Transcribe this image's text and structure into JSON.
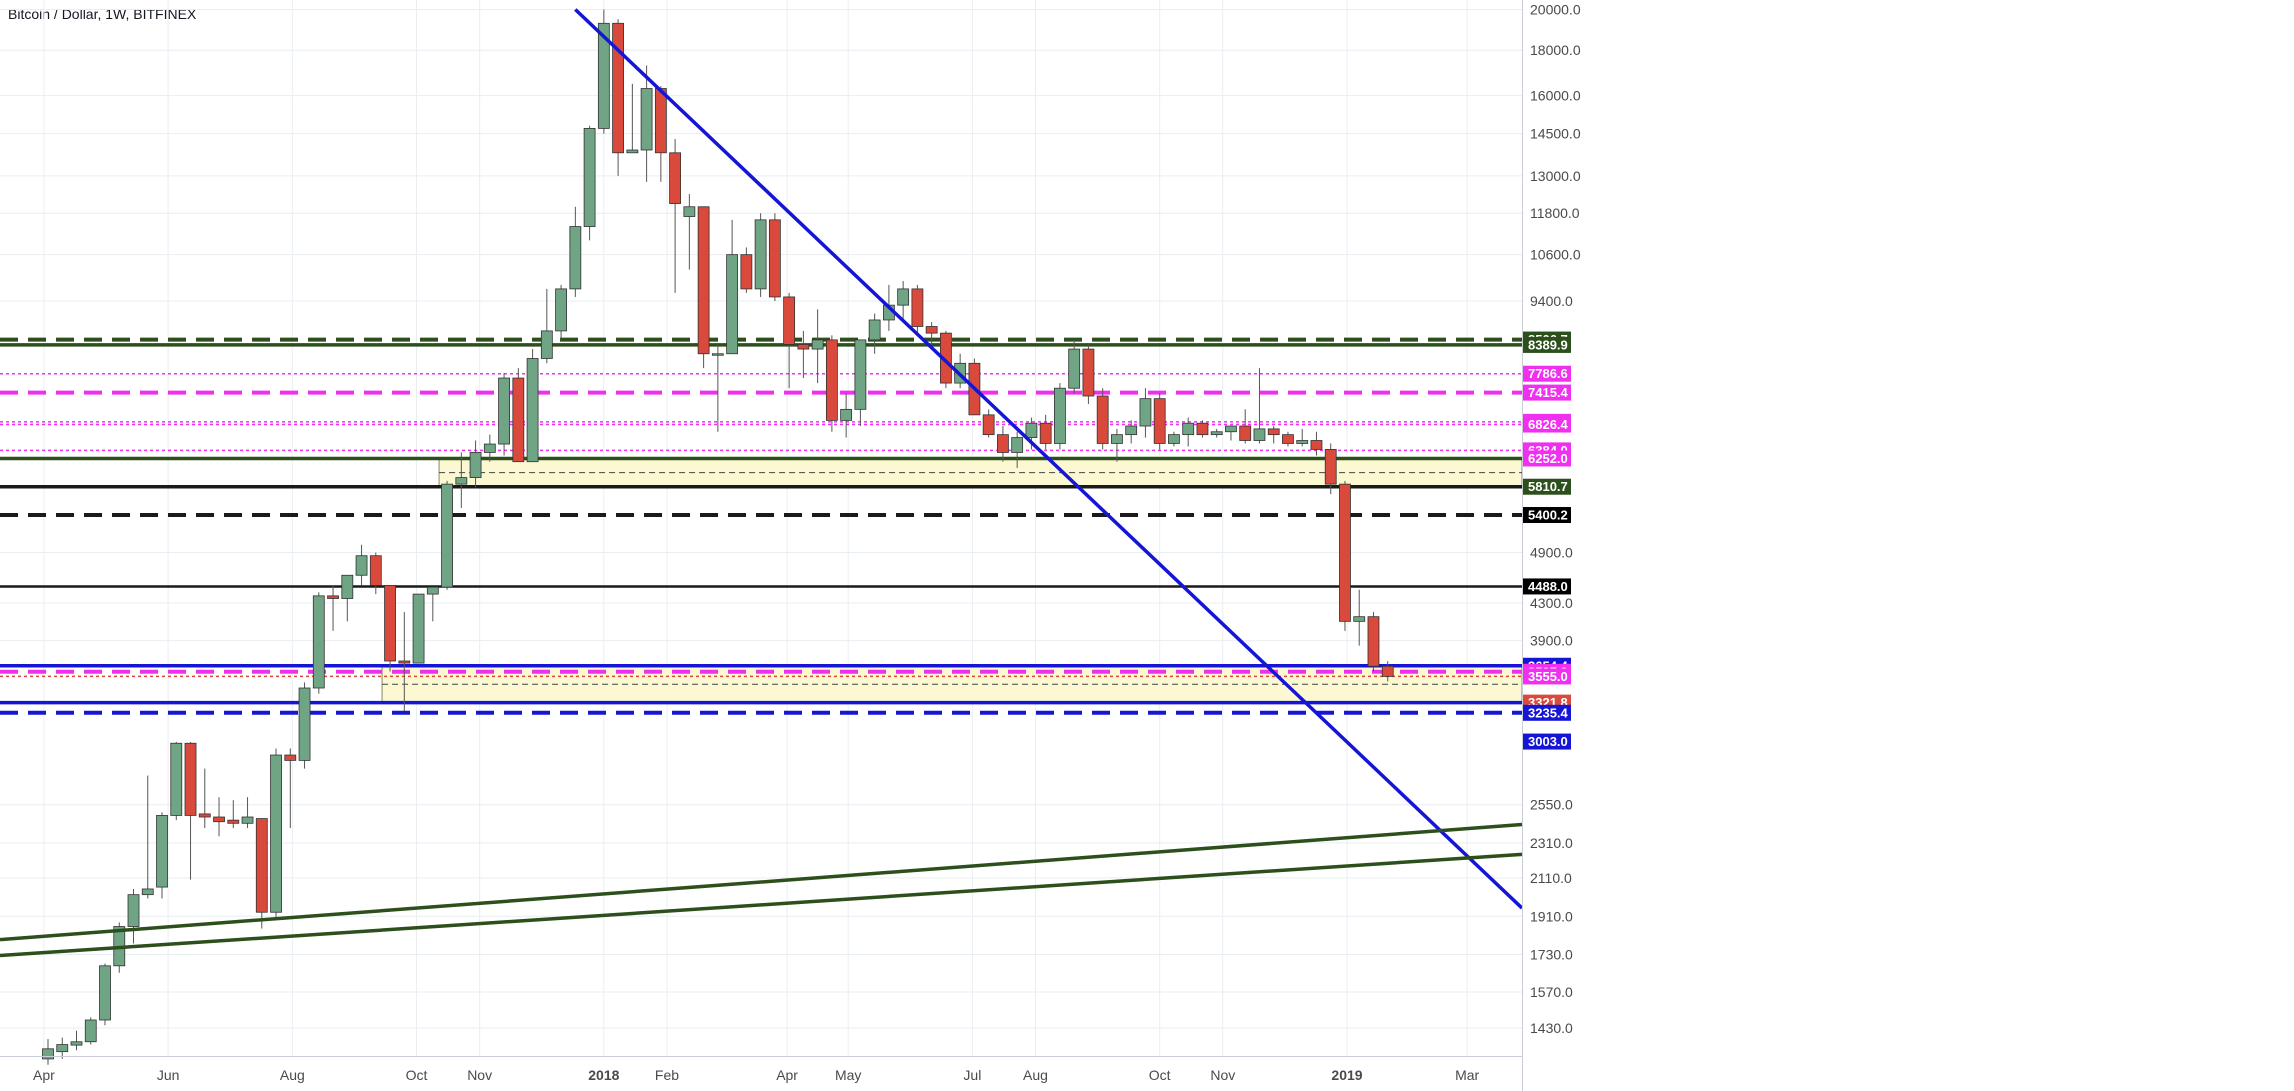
{
  "header": {
    "title": "Bitcoin / Dollar, 1W, BITFINEX"
  },
  "colors": {
    "up": "#6fa485",
    "down": "#d94a3c",
    "trend_blue": "#1515d6",
    "support_green": "#2d4f1c",
    "magenta": "#f030f0",
    "zone_fill": "#fcf8d2",
    "grid": "#e9eef3"
  },
  "chart_data": {
    "type": "candlestick",
    "symbol": "Bitcoin / Dollar",
    "interval": "1W",
    "exchange": "BITFINEX",
    "y_scale": "log",
    "ylim": [
      1330,
      20500
    ],
    "x_start": "2017-04-03",
    "x_end": "2019-03-25",
    "y_ticks": [
      1430.0,
      1570.0,
      1730.0,
      1910.0,
      2110.0,
      2310.0,
      2550.0,
      3900.0,
      4300.0,
      4900.0,
      9400.0,
      10600.0,
      11800.0,
      13000.0,
      14500.0,
      16000.0,
      18000.0,
      20000.0
    ],
    "x_ticks": [
      {
        "label": "Apr",
        "date": "2017-04-01"
      },
      {
        "label": "Jun",
        "date": "2017-06-01"
      },
      {
        "label": "Aug",
        "date": "2017-08-01"
      },
      {
        "label": "Oct",
        "date": "2017-10-01"
      },
      {
        "label": "Nov",
        "date": "2017-11-01"
      },
      {
        "label": "2018",
        "date": "2018-01-01"
      },
      {
        "label": "Feb",
        "date": "2018-02-01"
      },
      {
        "label": "Apr",
        "date": "2018-04-01"
      },
      {
        "label": "May",
        "date": "2018-05-01"
      },
      {
        "label": "Jul",
        "date": "2018-07-01"
      },
      {
        "label": "Aug",
        "date": "2018-08-01"
      },
      {
        "label": "Oct",
        "date": "2018-10-01"
      },
      {
        "label": "Nov",
        "date": "2018-11-01"
      },
      {
        "label": "2019",
        "date": "2019-01-01"
      },
      {
        "label": "Mar",
        "date": "2019-03-01"
      }
    ],
    "candles": [
      {
        "date": "2017-04-03",
        "o": 1320,
        "h": 1390,
        "l": 1300,
        "c": 1355
      },
      {
        "date": "2017-04-10",
        "o": 1345,
        "h": 1395,
        "l": 1320,
        "c": 1370
      },
      {
        "date": "2017-04-17",
        "o": 1368,
        "h": 1420,
        "l": 1350,
        "c": 1380
      },
      {
        "date": "2017-04-24",
        "o": 1380,
        "h": 1470,
        "l": 1370,
        "c": 1460
      },
      {
        "date": "2017-05-01",
        "o": 1460,
        "h": 1690,
        "l": 1440,
        "c": 1680
      },
      {
        "date": "2017-05-08",
        "o": 1680,
        "h": 1880,
        "l": 1650,
        "c": 1860
      },
      {
        "date": "2017-05-15",
        "o": 1860,
        "h": 2050,
        "l": 1780,
        "c": 2020
      },
      {
        "date": "2017-05-22",
        "o": 2020,
        "h": 2750,
        "l": 2000,
        "c": 2050
      },
      {
        "date": "2017-05-29",
        "o": 2060,
        "h": 2500,
        "l": 2000,
        "c": 2480
      },
      {
        "date": "2017-06-05",
        "o": 2480,
        "h": 3000,
        "l": 2450,
        "c": 2990
      },
      {
        "date": "2017-06-12",
        "o": 2990,
        "h": 3000,
        "l": 2100,
        "c": 2480
      },
      {
        "date": "2017-06-19",
        "o": 2490,
        "h": 2800,
        "l": 2400,
        "c": 2470
      },
      {
        "date": "2017-06-26",
        "o": 2470,
        "h": 2600,
        "l": 2350,
        "c": 2440
      },
      {
        "date": "2017-07-03",
        "o": 2450,
        "h": 2580,
        "l": 2400,
        "c": 2430
      },
      {
        "date": "2017-07-10",
        "o": 2430,
        "h": 2600,
        "l": 2400,
        "c": 2470
      },
      {
        "date": "2017-07-17",
        "o": 2460,
        "h": 2460,
        "l": 1850,
        "c": 1930
      },
      {
        "date": "2017-07-24",
        "o": 1930,
        "h": 2950,
        "l": 1900,
        "c": 2900
      },
      {
        "date": "2017-07-31",
        "o": 2900,
        "h": 2950,
        "l": 2400,
        "c": 2860
      },
      {
        "date": "2017-08-07",
        "o": 2860,
        "h": 3500,
        "l": 2800,
        "c": 3450
      },
      {
        "date": "2017-08-14",
        "o": 3450,
        "h": 4420,
        "l": 3400,
        "c": 4380
      },
      {
        "date": "2017-08-21",
        "o": 4380,
        "h": 4500,
        "l": 4000,
        "c": 4350
      },
      {
        "date": "2017-08-28",
        "o": 4350,
        "h": 4600,
        "l": 4100,
        "c": 4620
      },
      {
        "date": "2017-09-04",
        "o": 4620,
        "h": 5000,
        "l": 4500,
        "c": 4860
      },
      {
        "date": "2017-09-11",
        "o": 4860,
        "h": 4900,
        "l": 4400,
        "c": 4500
      },
      {
        "date": "2017-09-18",
        "o": 4500,
        "h": 4500,
        "l": 3600,
        "c": 3700
      },
      {
        "date": "2017-09-25",
        "o": 3700,
        "h": 4200,
        "l": 3250,
        "c": 3680
      },
      {
        "date": "2017-10-02",
        "o": 3680,
        "h": 4350,
        "l": 3680,
        "c": 4400
      },
      {
        "date": "2017-10-09",
        "o": 4400,
        "h": 4420,
        "l": 4100,
        "c": 4480
      },
      {
        "date": "2017-10-16",
        "o": 4480,
        "h": 5900,
        "l": 4450,
        "c": 5850
      },
      {
        "date": "2017-10-23",
        "o": 5850,
        "h": 6350,
        "l": 5500,
        "c": 5950
      },
      {
        "date": "2017-10-30",
        "o": 5950,
        "h": 6550,
        "l": 5800,
        "c": 6350
      },
      {
        "date": "2017-11-06",
        "o": 6350,
        "h": 6650,
        "l": 6200,
        "c": 6490
      },
      {
        "date": "2017-11-13",
        "o": 6490,
        "h": 7800,
        "l": 6300,
        "c": 7700
      },
      {
        "date": "2017-11-20",
        "o": 7700,
        "h": 7900,
        "l": 6200,
        "c": 6200
      },
      {
        "date": "2017-11-27",
        "o": 6200,
        "h": 8300,
        "l": 6200,
        "c": 8100
      },
      {
        "date": "2017-12-04",
        "o": 8100,
        "h": 9700,
        "l": 8000,
        "c": 8700
      },
      {
        "date": "2017-12-11",
        "o": 8700,
        "h": 9800,
        "l": 8500,
        "c": 9700
      },
      {
        "date": "2017-12-18",
        "o": 9700,
        "h": 12000,
        "l": 9500,
        "c": 11400
      },
      {
        "date": "2017-12-25",
        "o": 11400,
        "h": 14800,
        "l": 11000,
        "c": 14700
      },
      {
        "date": "2018-01-01",
        "o": 14700,
        "h": 20000,
        "l": 14500,
        "c": 19300
      },
      {
        "date": "2018-01-08",
        "o": 19300,
        "h": 19500,
        "l": 13000,
        "c": 13800
      },
      {
        "date": "2018-01-15",
        "o": 13800,
        "h": 16500,
        "l": 13800,
        "c": 13900
      },
      {
        "date": "2018-01-22",
        "o": 13900,
        "h": 17300,
        "l": 12800,
        "c": 16300
      },
      {
        "date": "2018-01-29",
        "o": 16300,
        "h": 16400,
        "l": 12800,
        "c": 13800
      },
      {
        "date": "2018-02-05",
        "o": 13800,
        "h": 14300,
        "l": 9600,
        "c": 12100
      },
      {
        "date": "2018-02-12",
        "o": 11700,
        "h": 12400,
        "l": 10200,
        "c": 12000
      },
      {
        "date": "2018-02-19",
        "o": 12000,
        "h": 12000,
        "l": 7900,
        "c": 8200
      },
      {
        "date": "2018-02-26",
        "o": 8200,
        "h": 8400,
        "l": 6700,
        "c": 8200
      },
      {
        "date": "2018-03-05",
        "o": 8200,
        "h": 11600,
        "l": 8200,
        "c": 10600
      },
      {
        "date": "2018-03-12",
        "o": 10600,
        "h": 10800,
        "l": 9600,
        "c": 9700
      },
      {
        "date": "2018-03-19",
        "o": 9700,
        "h": 11800,
        "l": 9500,
        "c": 11600
      },
      {
        "date": "2018-03-26",
        "o": 11600,
        "h": 11800,
        "l": 9400,
        "c": 9500
      },
      {
        "date": "2018-04-02",
        "o": 9500,
        "h": 9600,
        "l": 7500,
        "c": 8400
      },
      {
        "date": "2018-04-09",
        "o": 8400,
        "h": 8700,
        "l": 7700,
        "c": 8300
      },
      {
        "date": "2018-04-16",
        "o": 8300,
        "h": 9200,
        "l": 7600,
        "c": 8500
      },
      {
        "date": "2018-04-23",
        "o": 8500,
        "h": 8600,
        "l": 6700,
        "c": 6900
      },
      {
        "date": "2018-04-30",
        "o": 6900,
        "h": 7400,
        "l": 6600,
        "c": 7100
      },
      {
        "date": "2018-05-07",
        "o": 7100,
        "h": 8500,
        "l": 6800,
        "c": 8500
      },
      {
        "date": "2018-05-14",
        "o": 8500,
        "h": 9100,
        "l": 8200,
        "c": 8950
      },
      {
        "date": "2018-05-21",
        "o": 8950,
        "h": 9800,
        "l": 8700,
        "c": 9300
      },
      {
        "date": "2018-05-28",
        "o": 9300,
        "h": 9900,
        "l": 8900,
        "c": 9700
      },
      {
        "date": "2018-06-04",
        "o": 9700,
        "h": 9800,
        "l": 8600,
        "c": 8800
      },
      {
        "date": "2018-06-11",
        "o": 8800,
        "h": 8900,
        "l": 8300,
        "c": 8650
      },
      {
        "date": "2018-06-18",
        "o": 8650,
        "h": 8700,
        "l": 7500,
        "c": 7600
      },
      {
        "date": "2018-06-25",
        "o": 7600,
        "h": 8200,
        "l": 7500,
        "c": 8000
      },
      {
        "date": "2018-07-02",
        "o": 8000,
        "h": 8100,
        "l": 7000,
        "c": 7000
      },
      {
        "date": "2018-07-09",
        "o": 7000,
        "h": 7100,
        "l": 6600,
        "c": 6650
      },
      {
        "date": "2018-07-16",
        "o": 6650,
        "h": 6800,
        "l": 6200,
        "c": 6350
      },
      {
        "date": "2018-07-23",
        "o": 6350,
        "h": 6700,
        "l": 6100,
        "c": 6600
      },
      {
        "date": "2018-07-30",
        "o": 6600,
        "h": 6950,
        "l": 6400,
        "c": 6850
      },
      {
        "date": "2018-08-06",
        "o": 6850,
        "h": 7000,
        "l": 6400,
        "c": 6500
      },
      {
        "date": "2018-08-13",
        "o": 6500,
        "h": 7600,
        "l": 6400,
        "c": 7500
      },
      {
        "date": "2018-08-20",
        "o": 7500,
        "h": 8500,
        "l": 7400,
        "c": 8300
      },
      {
        "date": "2018-08-27",
        "o": 8300,
        "h": 8400,
        "l": 7200,
        "c": 7350
      },
      {
        "date": "2018-09-03",
        "o": 7350,
        "h": 7500,
        "l": 6400,
        "c": 6500
      },
      {
        "date": "2018-09-10",
        "o": 6500,
        "h": 6750,
        "l": 6200,
        "c": 6650
      },
      {
        "date": "2018-09-17",
        "o": 6650,
        "h": 6900,
        "l": 6500,
        "c": 6800
      },
      {
        "date": "2018-09-24",
        "o": 6800,
        "h": 7500,
        "l": 6600,
        "c": 7300
      },
      {
        "date": "2018-10-01",
        "o": 7300,
        "h": 7400,
        "l": 6400,
        "c": 6500
      },
      {
        "date": "2018-10-08",
        "o": 6500,
        "h": 6700,
        "l": 6450,
        "c": 6650
      },
      {
        "date": "2018-10-15",
        "o": 6650,
        "h": 6950,
        "l": 6450,
        "c": 6850
      },
      {
        "date": "2018-10-22",
        "o": 6850,
        "h": 6900,
        "l": 6600,
        "c": 6650
      },
      {
        "date": "2018-10-29",
        "o": 6650,
        "h": 6750,
        "l": 6600,
        "c": 6700
      },
      {
        "date": "2018-11-05",
        "o": 6700,
        "h": 6800,
        "l": 6550,
        "c": 6800
      },
      {
        "date": "2018-11-12",
        "o": 6800,
        "h": 7100,
        "l": 6500,
        "c": 6550
      },
      {
        "date": "2018-11-19",
        "o": 6550,
        "h": 7900,
        "l": 6500,
        "c": 6750
      },
      {
        "date": "2018-11-26",
        "o": 6750,
        "h": 6800,
        "l": 6500,
        "c": 6650
      },
      {
        "date": "2018-12-03",
        "o": 6650,
        "h": 6700,
        "l": 6450,
        "c": 6500
      },
      {
        "date": "2018-12-10",
        "o": 6500,
        "h": 6750,
        "l": 6450,
        "c": 6550
      },
      {
        "date": "2018-12-17",
        "o": 6550,
        "h": 6700,
        "l": 6300,
        "c": 6400
      },
      {
        "date": "2018-12-24",
        "o": 6400,
        "h": 6500,
        "l": 5700,
        "c": 5850
      },
      {
        "date": "2018-12-31",
        "o": 5850,
        "h": 5900,
        "l": 4000,
        "c": 4100
      },
      {
        "date": "2019-01-07",
        "o": 4100,
        "h": 4450,
        "l": 3850,
        "c": 4150
      },
      {
        "date": "2019-01-14",
        "o": 4150,
        "h": 4200,
        "l": 3600,
        "c": 3650
      },
      {
        "date": "2019-01-21",
        "o": 3650,
        "h": 3700,
        "l": 3510,
        "c": 3555
      }
    ],
    "levels": [
      {
        "value": 8506.7,
        "style": "dash-thick",
        "color": "#2d4f1c",
        "label": "8506.7"
      },
      {
        "value": 8389.9,
        "style": "solid-thick",
        "color": "#2d4f1c",
        "label": "8389.9"
      },
      {
        "value": 7786.6,
        "style": "dot",
        "color": "#f030f0",
        "label": "7786.6"
      },
      {
        "value": 7415.4,
        "style": "dash-thick",
        "color": "#f030f0",
        "label": "7415.4"
      },
      {
        "value": 6873.4,
        "style": "dot",
        "color": "#f030f0",
        "label": "6873.4"
      },
      {
        "value": 6826.4,
        "style": "dot",
        "color": "#f030f0",
        "label": "6826.4"
      },
      {
        "value": 6384.0,
        "style": "dot",
        "color": "#f030f0",
        "label": "6384.0"
      },
      {
        "value": 6252.0,
        "style": "solid-thick",
        "color": "#2d4f1c",
        "label": "6252.0"
      },
      {
        "value": 5810.7,
        "style": "solid-thick",
        "color": "#1a1a1a",
        "label": "5810.7"
      },
      {
        "value": 5400.2,
        "style": "dash-thick",
        "color": "#1a1a1a",
        "label": "5400.2"
      },
      {
        "value": 4488.0,
        "style": "solid",
        "color": "#1a1a1a",
        "label": "4488.0"
      },
      {
        "value": 3654.4,
        "style": "solid-thick",
        "color": "#1515d6",
        "label": "3654.4"
      },
      {
        "value": 3597.9,
        "style": "dash-thick",
        "color": "#f030f0",
        "label": "3597.9"
      },
      {
        "value": 3555.0,
        "style": "dot",
        "color": "#d94a3c",
        "label": "3555.0"
      },
      {
        "value": 3321.8,
        "style": "solid-thick",
        "color": "#1515d6",
        "label": "3321.8"
      },
      {
        "value": 3235.4,
        "style": "dash-thick",
        "color": "#1515d6",
        "label": "3235.4"
      },
      {
        "value": 3003.0,
        "style": "none",
        "color": "#1515d6",
        "label": "3003.0"
      }
    ],
    "price_tags": [
      {
        "value": 8506.7,
        "label": "8506.7",
        "bg": "#2d4f1c",
        "fg": "#ffffff"
      },
      {
        "value": 8389.9,
        "label": "8389.9",
        "bg": "#2d4f1c",
        "fg": "#ffffff"
      },
      {
        "value": 7786.6,
        "label": "7786.6",
        "bg": "#f030f0",
        "fg": "#ffffff"
      },
      {
        "value": 7415.4,
        "label": "7415.4",
        "bg": "#f030f0",
        "fg": "#ffffff"
      },
      {
        "value": 6873.4,
        "label": "6873.4",
        "bg": "#f030f0",
        "fg": "#ffffff"
      },
      {
        "value": 6826.4,
        "label": "6826.4",
        "bg": "#f030f0",
        "fg": "#ffffff"
      },
      {
        "value": 6384.0,
        "label": "6384.0",
        "bg": "#f030f0",
        "fg": "#ffffff"
      },
      {
        "value": 6252.0,
        "label": "6252.0",
        "bg": "#f030f0",
        "fg": "#ffffff"
      },
      {
        "value": 5810.7,
        "label": "5810.7",
        "bg": "#2d4f1c",
        "fg": "#ffffff"
      },
      {
        "value": 5400.2,
        "label": "5400.2",
        "bg": "#000000",
        "fg": "#ffffff"
      },
      {
        "value": 4488.0,
        "label": "4488.0",
        "bg": "#000000",
        "fg": "#ffffff"
      },
      {
        "value": 3654.4,
        "label": "3654.4",
        "bg": "#1515d6",
        "fg": "#ffffff"
      },
      {
        "value": 3597.9,
        "label": "3597.9",
        "bg": "#f030f0",
        "fg": "#ffffff"
      },
      {
        "value": 3555.0,
        "label": "3555.0",
        "bg": "#f030f0",
        "fg": "#ffffff"
      },
      {
        "value": 3321.8,
        "label": "3321.8",
        "bg": "#d94a3c",
        "fg": "#ffffff"
      },
      {
        "value": 3235.4,
        "label": "3235.4",
        "bg": "#1515d6",
        "fg": "#ffffff"
      },
      {
        "value": 3003.0,
        "label": "3003.0",
        "bg": "#1515d6",
        "fg": "#ffffff"
      }
    ],
    "zones": [
      {
        "from_date": "2017-10-16",
        "top": 6252.0,
        "bottom": 5810.7,
        "color": "#fcf8d2"
      },
      {
        "from_date": "2017-09-18",
        "top": 3654.4,
        "bottom": 3321.8,
        "color": "#fcf8d2"
      }
    ],
    "trendlines": [
      {
        "name": "descending-resistance",
        "color": "#1515d6",
        "from": [
          "2017-12-18",
          20000
        ],
        "to": [
          "2019-03-25",
          1980
        ]
      },
      {
        "name": "upper-support-channel",
        "color": "#2d4f1c",
        "from": [
          "2017-04-03",
          1815
        ],
        "to": [
          "2019-03-25",
          2420
        ]
      },
      {
        "name": "lower-support-channel",
        "color": "#2d4f1c",
        "from": [
          "2017-04-03",
          1740
        ],
        "to": [
          "2019-03-25",
          2240
        ]
      }
    ]
  }
}
